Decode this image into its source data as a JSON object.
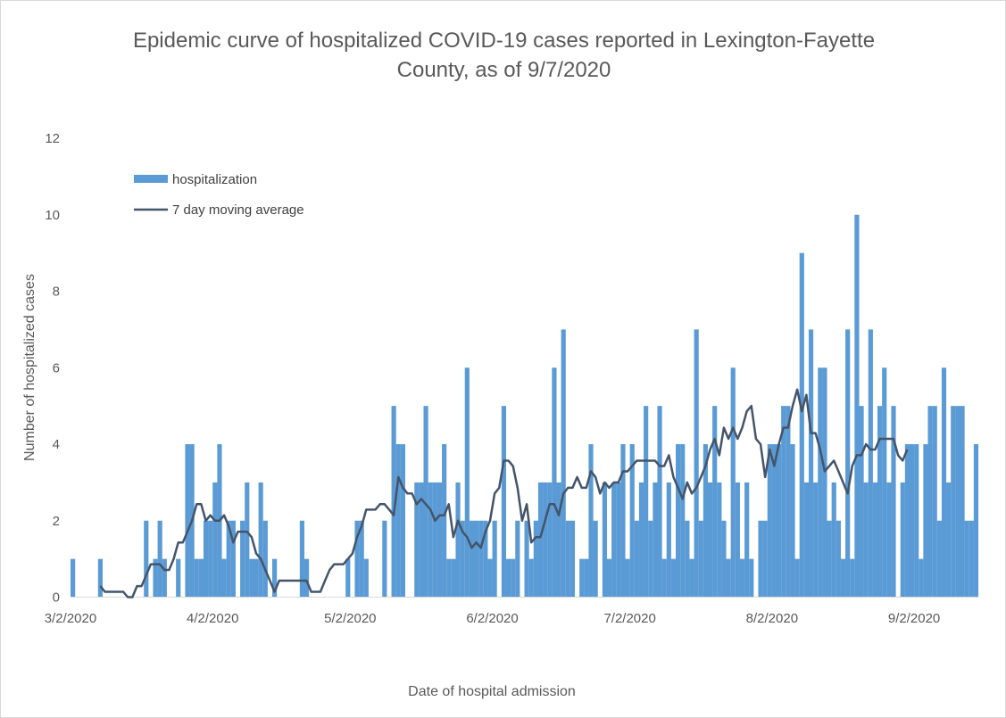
{
  "chart_data": {
    "type": "bar",
    "title_lines": [
      "Epidemic curve of hospitalized COVID-19 cases reported in Lexington-Fayette",
      "County, as of 9/7/2020"
    ],
    "xlabel": "Date of hospital admission",
    "ylabel": "Number of hospitalized cases",
    "ylim": [
      0,
      12
    ],
    "yticks": [
      0,
      2,
      4,
      6,
      8,
      10,
      12
    ],
    "x_start": "3/2/2020",
    "x_end": "9/7/2020",
    "xticks": [
      "3/2/2020",
      "4/2/2020",
      "5/2/2020",
      "6/2/2020",
      "7/2/2020",
      "8/2/2020",
      "9/2/2020"
    ],
    "legend": {
      "placement": "top-left",
      "bar_label": "hospitalization",
      "line_label": "7 day moving average"
    },
    "colors": {
      "bar": "#5b9bd5",
      "line": "#44546a"
    },
    "grid": false,
    "series": [
      {
        "name": "hospitalization",
        "type": "bar",
        "values": [
          1,
          0,
          0,
          0,
          0,
          0,
          1,
          0,
          0,
          0,
          0,
          0,
          0,
          0,
          0,
          0,
          2,
          0,
          1,
          2,
          1,
          0,
          0,
          1,
          0,
          4,
          4,
          1,
          1,
          2,
          2,
          3,
          4,
          1,
          2,
          2,
          0,
          2,
          3,
          1,
          1,
          3,
          2,
          0,
          1,
          0,
          0,
          0,
          0,
          0,
          2,
          1,
          0,
          0,
          0,
          0,
          0,
          0,
          0,
          0,
          1,
          0,
          2,
          2,
          1,
          0,
          0,
          0,
          2,
          0,
          5,
          4,
          4,
          0,
          0,
          3,
          3,
          5,
          3,
          3,
          3,
          4,
          1,
          1,
          3,
          2,
          6,
          2,
          2,
          2,
          2,
          1,
          2,
          0,
          5,
          1,
          1,
          2,
          0,
          2,
          1,
          2,
          3,
          3,
          3,
          6,
          3,
          7,
          2,
          2,
          0,
          1,
          1,
          4,
          2,
          0,
          3,
          1,
          3,
          3,
          4,
          1,
          4,
          2,
          3,
          5,
          2,
          3,
          5,
          1,
          3,
          1,
          4,
          4,
          2,
          1,
          7,
          2,
          4,
          3,
          5,
          3,
          2,
          1,
          6,
          3,
          1,
          3,
          1,
          0,
          2,
          2,
          4,
          4,
          4,
          5,
          5,
          4,
          1,
          9,
          3,
          7,
          3,
          6,
          6,
          2,
          3,
          2,
          1,
          7,
          1,
          10,
          5,
          3,
          7,
          3,
          5,
          6,
          3,
          5,
          0,
          3,
          4,
          4,
          4,
          1,
          4,
          5,
          5,
          2,
          6,
          3,
          5,
          5,
          5,
          2,
          2,
          4
        ]
      },
      {
        "name": "7 day moving average",
        "type": "line",
        "values": [
          null,
          null,
          null,
          null,
          null,
          null,
          0.29,
          0.14,
          0.14,
          0.14,
          0.14,
          0.14,
          0.0,
          0.0,
          0.29,
          0.29,
          0.57,
          0.86,
          0.86,
          0.86,
          0.71,
          0.71,
          1.0,
          1.43,
          1.43,
          1.71,
          2.0,
          2.43,
          2.43,
          2.0,
          2.14,
          2.0,
          2.0,
          2.14,
          1.86,
          1.43,
          1.71,
          1.71,
          1.71,
          1.57,
          1.14,
          1.0,
          0.71,
          0.43,
          0.14,
          0.43,
          0.43,
          0.43,
          0.43,
          0.43,
          0.43,
          0.43,
          0.14,
          0.14,
          0.14,
          0.43,
          0.71,
          0.86,
          0.86,
          0.86,
          1.0,
          1.14,
          1.57,
          1.86,
          2.29,
          2.29,
          2.29,
          2.43,
          2.43,
          2.29,
          2.14,
          3.14,
          2.86,
          2.71,
          2.71,
          2.43,
          2.57,
          2.43,
          2.29,
          2.0,
          2.14,
          2.14,
          2.43,
          1.57,
          2.0,
          1.71,
          1.57,
          1.29,
          1.43,
          1.29,
          1.71,
          2.0,
          2.71,
          2.86,
          3.57,
          3.57,
          3.43,
          2.86,
          2.0,
          2.43,
          1.43,
          1.57,
          1.57,
          2.0,
          2.43,
          2.43,
          2.14,
          2.71,
          2.86,
          2.86,
          3.14,
          2.86,
          2.86,
          3.29,
          3.14,
          2.71,
          3.0,
          2.86,
          3.0,
          3.0,
          3.29,
          3.29,
          3.43,
          3.57,
          3.57,
          3.57,
          3.57,
          3.57,
          3.43,
          3.43,
          3.71,
          3.14,
          2.86,
          2.57,
          3.0,
          2.71,
          2.86,
          3.14,
          3.43,
          3.86,
          4.14,
          3.71,
          4.43,
          4.14,
          4.43,
          4.14,
          4.43,
          4.86,
          5.0,
          4.14,
          4.0,
          3.14,
          3.86,
          3.43,
          4.0,
          4.43,
          4.43,
          5.0,
          5.43,
          4.86,
          5.29,
          4.29,
          4.29,
          3.86,
          3.29,
          3.43,
          3.57,
          3.29,
          3.0,
          2.71,
          3.43,
          3.71,
          3.71,
          4.0,
          3.86,
          3.86,
          4.14,
          4.14,
          4.14,
          4.14,
          3.71,
          3.57,
          3.86
        ]
      }
    ]
  }
}
